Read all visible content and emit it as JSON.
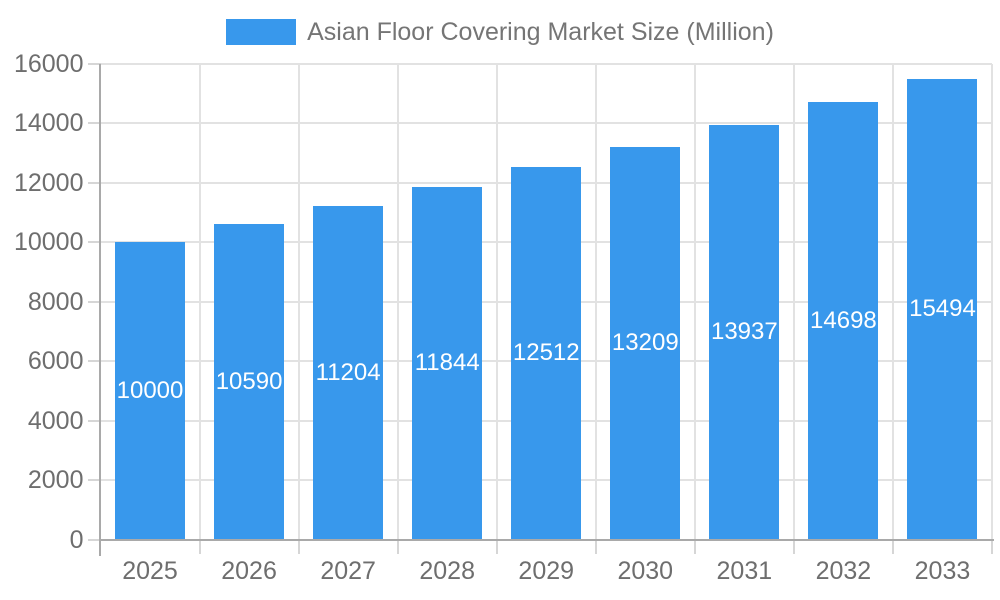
{
  "chart_data": {
    "type": "bar",
    "title": "Asian Floor Covering Market Size (Million)",
    "categories": [
      "2025",
      "2026",
      "2027",
      "2028",
      "2029",
      "2030",
      "2031",
      "2032",
      "2033"
    ],
    "series": [
      {
        "name": "Asian Floor Covering Market Size (Million)",
        "values": [
          10000,
          10590,
          11204,
          11844,
          12512,
          13209,
          13937,
          14698,
          15494
        ]
      }
    ],
    "ylim": [
      0,
      16000
    ],
    "yticks": [
      0,
      2000,
      4000,
      6000,
      8000,
      10000,
      12000,
      14000,
      16000
    ],
    "grid": true,
    "legend_position": "top-center",
    "value_label_position": "inside-middle"
  },
  "colors": {
    "bar": "#3898ec",
    "bar_label": "#ffffff",
    "axis_line": "#a9a9a9",
    "gridline": "#e2e2e2",
    "tick_mark": "#d6d6d6",
    "tick_label": "#6e6e6e",
    "title": "#757575",
    "background": "#ffffff"
  }
}
